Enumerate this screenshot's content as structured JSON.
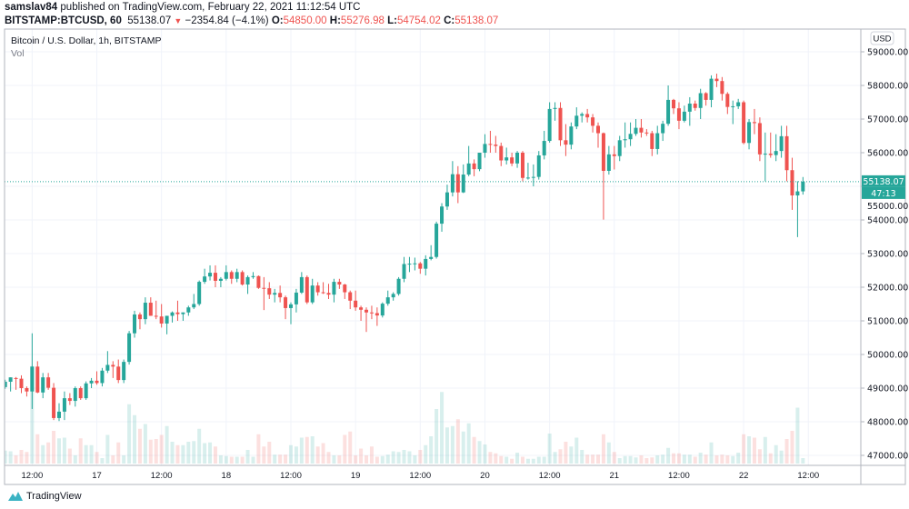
{
  "header": {
    "author": "samslav84",
    "published_text": "published on TradingView.com, February 22, 2021 11:12:54 UTC",
    "symbol": "BITSTAMP:BTCUSD, 60",
    "last_price": "55138.07",
    "change": "−2354.84 (−4.1%)",
    "o_label": "O:",
    "o_value": "54850.00",
    "h_label": "H:",
    "h_value": "55276.98",
    "l_label": "L:",
    "l_value": "54754.02",
    "c_label": "C:",
    "c_value": "55138.07",
    "change_direction_icon": "triangle-down-icon"
  },
  "footer": {
    "brand": "TradingView",
    "logo_icon": "tradingview-logo-icon"
  },
  "colors": {
    "up": "#26a69a",
    "down": "#ef5350",
    "grid": "#f0f3fa",
    "axis_text": "#131722"
  },
  "chart_data": {
    "type": "candlestick",
    "title": "Bitcoin / U.S. Dollar, 1h, BITSTAMP",
    "volume_label": "Vol",
    "currency_label": "USD",
    "interval": "1h",
    "x_range": [
      "2021-02-16 07:00",
      "2021-02-22 11:00"
    ],
    "ylim": [
      46500,
      59600
    ],
    "y_ticks": [
      "47000.00",
      "48000.00",
      "49000.00",
      "50000.00",
      "51000.00",
      "52000.00",
      "53000.00",
      "54000.00",
      "55000.00",
      "56000.00",
      "57000.00",
      "58000.00",
      "59000.00"
    ],
    "x_ticks": [
      {
        "label": "12:00",
        "time": "2021-02-16 12:00"
      },
      {
        "label": "17",
        "time": "2021-02-17 00:00"
      },
      {
        "label": "12:00",
        "time": "2021-02-17 12:00"
      },
      {
        "label": "18",
        "time": "2021-02-18 00:00"
      },
      {
        "label": "12:00",
        "time": "2021-02-18 12:00"
      },
      {
        "label": "19",
        "time": "2021-02-19 00:00"
      },
      {
        "label": "12:00",
        "time": "2021-02-19 12:00"
      },
      {
        "label": "20",
        "time": "2021-02-20 00:00"
      },
      {
        "label": "12:00",
        "time": "2021-02-20 12:00"
      },
      {
        "label": "21",
        "time": "2021-02-21 00:00"
      },
      {
        "label": "12:00",
        "time": "2021-02-21 12:00"
      },
      {
        "label": "22",
        "time": "2021-02-22 00:00"
      },
      {
        "label": "12:00",
        "time": "2021-02-22 12:00"
      }
    ],
    "last_price_label": "55138.07",
    "countdown_label": "47:13",
    "grid": true,
    "ohlc": [
      [
        49030,
        49250,
        48980,
        49190
      ],
      [
        49190,
        49320,
        48900,
        49320
      ],
      [
        49300,
        49330,
        48950,
        49280
      ],
      [
        49280,
        49380,
        48850,
        49000
      ],
      [
        49000,
        49050,
        48750,
        48900
      ],
      [
        48900,
        50630,
        48380,
        49640
      ],
      [
        49640,
        49800,
        48850,
        48870
      ],
      [
        48870,
        49450,
        48700,
        49320
      ],
      [
        49320,
        49450,
        48950,
        49010
      ],
      [
        49010,
        49150,
        48050,
        48110
      ],
      [
        48110,
        48550,
        48020,
        48300
      ],
      [
        48300,
        48900,
        48050,
        48700
      ],
      [
        48700,
        48850,
        48500,
        48620
      ],
      [
        48620,
        49050,
        48450,
        49000
      ],
      [
        49000,
        49050,
        48650,
        48700
      ],
      [
        48700,
        49200,
        48650,
        49140
      ],
      [
        49140,
        49300,
        49000,
        49220
      ],
      [
        49220,
        49500,
        49100,
        49150
      ],
      [
        49150,
        49600,
        49050,
        49520
      ],
      [
        49520,
        50100,
        49450,
        49690
      ],
      [
        49690,
        49800,
        49300,
        49640
      ],
      [
        49640,
        49850,
        49150,
        49240
      ],
      [
        49240,
        49850,
        49150,
        49780
      ],
      [
        49780,
        50700,
        49700,
        50630
      ],
      [
        50630,
        51300,
        50500,
        51190
      ],
      [
        51190,
        51250,
        50750,
        51050
      ],
      [
        51050,
        51700,
        50900,
        51540
      ],
      [
        51540,
        51700,
        51150,
        51150
      ],
      [
        51150,
        51600,
        51050,
        51130
      ],
      [
        51130,
        51500,
        50800,
        50920
      ],
      [
        50920,
        51150,
        50600,
        51150
      ],
      [
        51150,
        51280,
        50950,
        51250
      ],
      [
        51250,
        51600,
        51000,
        51200
      ],
      [
        51200,
        51250,
        51000,
        51250
      ],
      [
        51250,
        51450,
        51150,
        51400
      ],
      [
        51400,
        51800,
        51350,
        51500
      ],
      [
        51500,
        52200,
        51450,
        52160
      ],
      [
        52160,
        52550,
        52100,
        52320
      ],
      [
        52320,
        52650,
        52200,
        52430
      ],
      [
        52430,
        52650,
        52000,
        52190
      ],
      [
        52190,
        52300,
        52000,
        52250
      ],
      [
        52250,
        52650,
        52200,
        52450
      ],
      [
        52450,
        52500,
        52100,
        52250
      ],
      [
        52250,
        52550,
        52150,
        52450
      ],
      [
        52450,
        52500,
        52050,
        52080
      ],
      [
        52080,
        52350,
        51800,
        52300
      ],
      [
        52300,
        52450,
        52250,
        52330
      ],
      [
        52330,
        52350,
        51950,
        51980
      ],
      [
        51980,
        52300,
        51320,
        51970
      ],
      [
        51970,
        52150,
        51650,
        51780
      ],
      [
        51780,
        51950,
        51550,
        51830
      ],
      [
        51830,
        52050,
        51550,
        51700
      ],
      [
        51700,
        51750,
        51050,
        51380
      ],
      [
        51380,
        51550,
        50900,
        51490
      ],
      [
        51490,
        51950,
        51250,
        51840
      ],
      [
        51840,
        52450,
        51800,
        52300
      ],
      [
        52300,
        52350,
        51500,
        51550
      ],
      [
        51550,
        52250,
        51500,
        52050
      ],
      [
        52050,
        52150,
        51750,
        51850
      ],
      [
        51850,
        52150,
        51800,
        51830
      ],
      [
        51830,
        52100,
        51650,
        51780
      ],
      [
        51780,
        52250,
        51550,
        52160
      ],
      [
        52160,
        52250,
        51950,
        52080
      ],
      [
        52080,
        52100,
        51650,
        51850
      ],
      [
        51850,
        51900,
        51350,
        51600
      ],
      [
        51600,
        51900,
        51300,
        51400
      ],
      [
        51400,
        51450,
        51000,
        51330
      ],
      [
        51330,
        51400,
        50670,
        51250
      ],
      [
        51250,
        51450,
        51050,
        51230
      ],
      [
        51230,
        51400,
        50850,
        51160
      ],
      [
        51160,
        51550,
        51100,
        51510
      ],
      [
        51510,
        51900,
        51450,
        51700
      ],
      [
        51700,
        51850,
        51600,
        51800
      ],
      [
        51800,
        52300,
        51750,
        52250
      ],
      [
        52250,
        52900,
        52150,
        52690
      ],
      [
        52690,
        52900,
        52450,
        52700
      ],
      [
        52700,
        52880,
        52500,
        52710
      ],
      [
        52710,
        52750,
        52400,
        52550
      ],
      [
        52550,
        52950,
        52350,
        52840
      ],
      [
        52840,
        53250,
        52800,
        52900
      ],
      [
        52900,
        53950,
        52850,
        53890
      ],
      [
        53890,
        54500,
        53650,
        54400
      ],
      [
        54400,
        55050,
        54300,
        54820
      ],
      [
        54820,
        55750,
        54700,
        55360
      ],
      [
        55360,
        55600,
        54500,
        54820
      ],
      [
        54820,
        55650,
        54800,
        55350
      ],
      [
        55350,
        56200,
        55300,
        55680
      ],
      [
        55680,
        55800,
        55300,
        55510
      ],
      [
        55510,
        56000,
        55450,
        56000
      ],
      [
        56000,
        56550,
        55850,
        56260
      ],
      [
        56260,
        56650,
        56000,
        56240
      ],
      [
        56240,
        56500,
        56000,
        56200
      ],
      [
        56200,
        56300,
        55600,
        55770
      ],
      [
        55770,
        56150,
        55650,
        55860
      ],
      [
        55860,
        56000,
        55600,
        55680
      ],
      [
        55680,
        56050,
        55550,
        56000
      ],
      [
        56000,
        56050,
        55150,
        55250
      ],
      [
        55250,
        55700,
        55200,
        55260
      ],
      [
        55260,
        55650,
        55000,
        55280
      ],
      [
        55280,
        56050,
        55200,
        55920
      ],
      [
        55920,
        56650,
        55800,
        56350
      ],
      [
        56350,
        57500,
        56300,
        57300
      ],
      [
        57300,
        57500,
        56950,
        57330
      ],
      [
        57330,
        57500,
        56200,
        56370
      ],
      [
        56370,
        56850,
        55900,
        56240
      ],
      [
        56240,
        56900,
        56100,
        56780
      ],
      [
        56780,
        57350,
        56700,
        57100
      ],
      [
        57100,
        57200,
        56900,
        57150
      ],
      [
        57150,
        57300,
        56900,
        57050
      ],
      [
        57050,
        57150,
        56600,
        56800
      ],
      [
        56800,
        56900,
        56150,
        56580
      ],
      [
        56580,
        56600,
        54010,
        55460
      ],
      [
        55460,
        56200,
        55350,
        55950
      ],
      [
        55950,
        56200,
        55500,
        55900
      ],
      [
        55900,
        56500,
        55750,
        56370
      ],
      [
        56370,
        56900,
        56150,
        56400
      ],
      [
        56400,
        56900,
        56200,
        56560
      ],
      [
        56560,
        57000,
        56500,
        56740
      ],
      [
        56740,
        57000,
        56450,
        56600
      ],
      [
        56600,
        56700,
        56500,
        56580
      ],
      [
        56580,
        56650,
        55900,
        56110
      ],
      [
        56110,
        56800,
        55950,
        56580
      ],
      [
        56580,
        56950,
        56350,
        56860
      ],
      [
        56860,
        58000,
        56800,
        57570
      ],
      [
        57570,
        57600,
        57150,
        57320
      ],
      [
        57320,
        57500,
        56700,
        56950
      ],
      [
        56950,
        57400,
        56900,
        57220
      ],
      [
        57220,
        57650,
        56800,
        57460
      ],
      [
        57460,
        57550,
        57250,
        57330
      ],
      [
        57330,
        57900,
        57000,
        57770
      ],
      [
        57770,
        57800,
        57400,
        57570
      ],
      [
        57570,
        58300,
        57350,
        58200
      ],
      [
        58200,
        58350,
        57950,
        58130
      ],
      [
        58130,
        58250,
        57550,
        57750
      ],
      [
        57750,
        57800,
        57150,
        57360
      ],
      [
        57360,
        57550,
        56850,
        57380
      ],
      [
        57380,
        57600,
        57300,
        57500
      ],
      [
        57500,
        57550,
        56250,
        56290
      ],
      [
        56290,
        57000,
        56100,
        56910
      ],
      [
        56910,
        57300,
        56550,
        56880
      ],
      [
        56880,
        57050,
        55750,
        55950
      ],
      [
        55950,
        56600,
        55150,
        55970
      ],
      [
        55970,
        56600,
        55850,
        55930
      ],
      [
        55930,
        56550,
        55750,
        56050
      ],
      [
        56050,
        56800,
        55850,
        56490
      ],
      [
        56490,
        56800,
        55150,
        55480
      ],
      [
        55480,
        55850,
        54300,
        54730
      ],
      [
        54730,
        55150,
        53490,
        54850
      ],
      [
        54850,
        55276.98,
        54754.02,
        55138.07
      ]
    ],
    "volume_relative": [
      19,
      18,
      12,
      20,
      17,
      143,
      43,
      27,
      31,
      48,
      37,
      38,
      22,
      12,
      37,
      27,
      27,
      17,
      8,
      42,
      12,
      31,
      12,
      87,
      71,
      51,
      58,
      35,
      36,
      42,
      55,
      32,
      27,
      27,
      32,
      33,
      51,
      30,
      31,
      25,
      12,
      11,
      10,
      10,
      10,
      20,
      10,
      43,
      25,
      32,
      13,
      13,
      13,
      27,
      25,
      38,
      39,
      40,
      25,
      30,
      17,
      12,
      12,
      42,
      47,
      12,
      22,
      12,
      25,
      10,
      11,
      13,
      18,
      17,
      20,
      18,
      12,
      20,
      27,
      40,
      80,
      105,
      53,
      55,
      65,
      47,
      59,
      39,
      33,
      28,
      17,
      15,
      11,
      10,
      7,
      16,
      10,
      7,
      7,
      10,
      10,
      44,
      17,
      21,
      32,
      25,
      38,
      20,
      13,
      13,
      13,
      43,
      31,
      17,
      8,
      11,
      11,
      9,
      12,
      8,
      9,
      12,
      13,
      23,
      15,
      15,
      13,
      13,
      10,
      16,
      13,
      31,
      12,
      13,
      12,
      11,
      16,
      43,
      40,
      38,
      21,
      39,
      15,
      27,
      19,
      36,
      48,
      82,
      8
    ]
  }
}
